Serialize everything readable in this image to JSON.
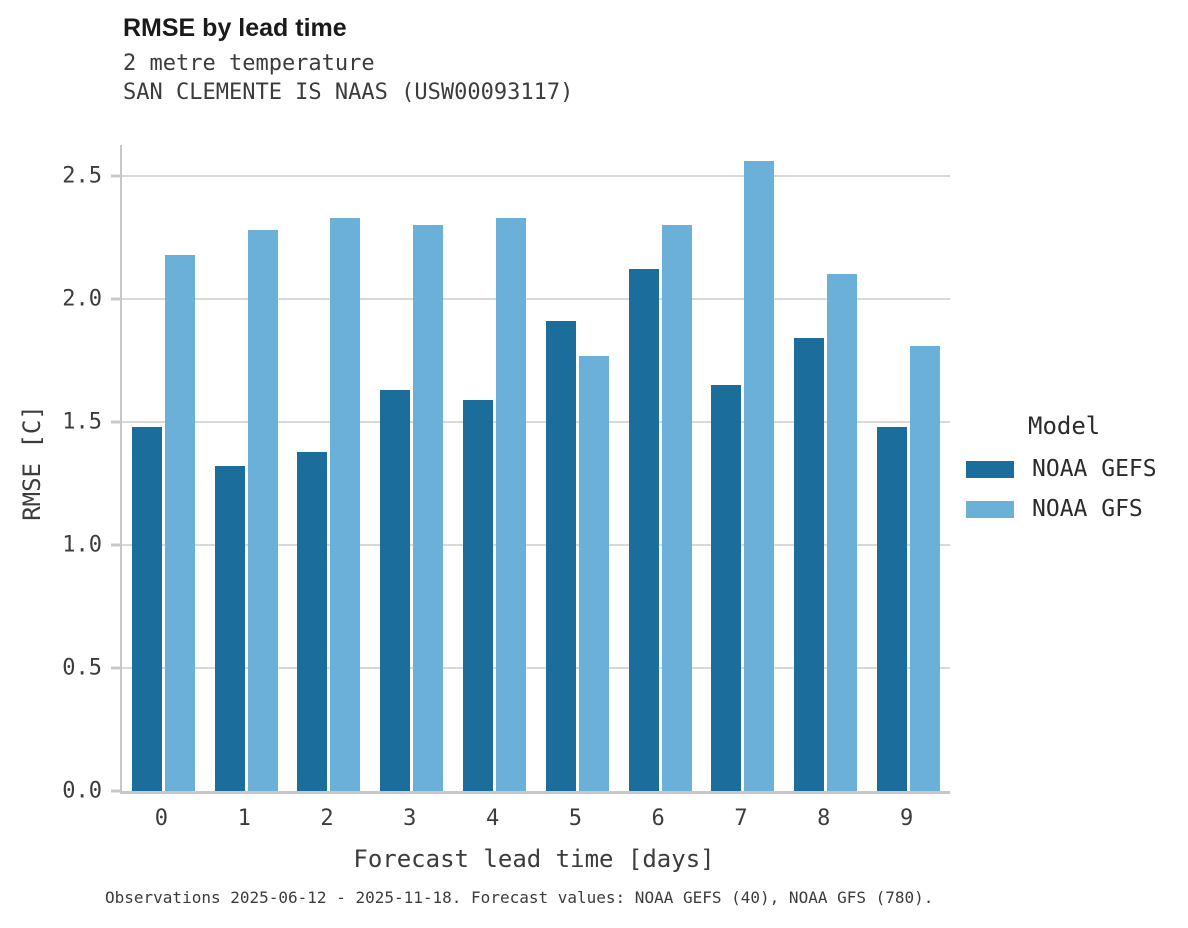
{
  "chart_data": {
    "type": "bar",
    "title": "RMSE by lead time",
    "subtitle": [
      "2 metre temperature",
      "SAN CLEMENTE IS NAAS (USW00093117)"
    ],
    "categories": [
      "0",
      "1",
      "2",
      "3",
      "4",
      "5",
      "6",
      "7",
      "8",
      "9"
    ],
    "series": [
      {
        "name": "NOAA GEFS",
        "color": "#1b6d9c",
        "values": [
          1.48,
          1.32,
          1.38,
          1.63,
          1.59,
          1.91,
          2.12,
          1.65,
          1.84,
          1.48
        ]
      },
      {
        "name": "NOAA GFS",
        "color": "#6bb0d8",
        "values": [
          2.18,
          2.28,
          2.33,
          2.3,
          2.33,
          1.77,
          2.3,
          2.56,
          2.1,
          1.81
        ]
      }
    ],
    "xlabel": "Forecast lead time [days]",
    "ylabel": "RMSE [C]",
    "yticks": [
      "0.0",
      "0.5",
      "1.0",
      "1.5",
      "2.0",
      "2.5"
    ],
    "ylim": [
      0,
      2.626
    ],
    "grid": true,
    "legend": {
      "title": "Model",
      "position": "right"
    }
  },
  "caption": "Observations 2025-06-12 - 2025-11-18. Forecast values: NOAA GEFS (40), NOAA GFS (780).",
  "colors": {
    "gefs": "#1b6d9c",
    "gfs": "#6bb0d8",
    "gridline": "#d9d9d9",
    "axis": "#c8c8c8",
    "background": "#ffffff"
  }
}
